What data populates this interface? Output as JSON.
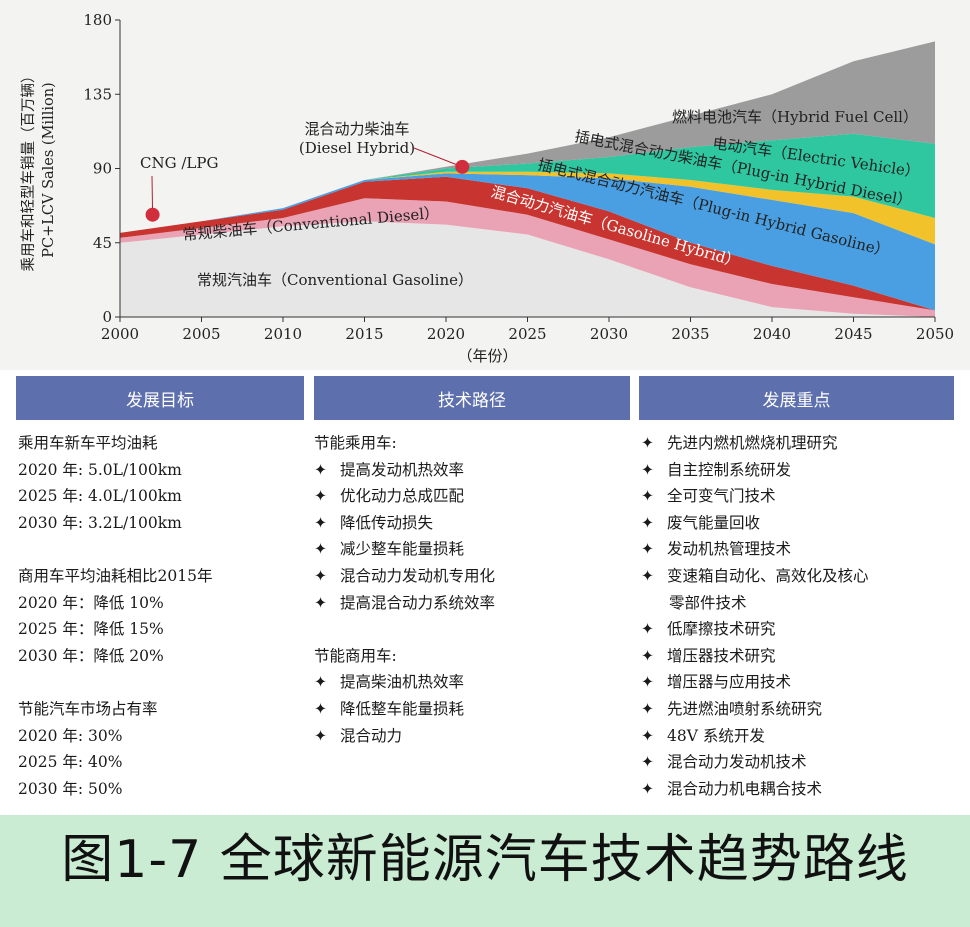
{
  "chart_data": {
    "type": "area",
    "ylabel_cn": "乘用车和轻型车销量（百万辆）",
    "ylabel_en": "PC+LCV Sales (Million)",
    "xlabel": "（年份）",
    "xlim": [
      2000,
      2050
    ],
    "ylim": [
      0,
      180
    ],
    "x_ticks": [
      "2000",
      "2005",
      "2010",
      "2015",
      "2020",
      "2025",
      "2030",
      "2035",
      "2040",
      "2045",
      "2050"
    ],
    "y_ticks": [
      "0",
      "45",
      "90",
      "135",
      "180"
    ],
    "x": [
      2000,
      2005,
      2010,
      2015,
      2020,
      2025,
      2030,
      2035,
      2040,
      2045,
      2050
    ],
    "series": [
      {
        "name": "常规汽油车（Conventional Gasoline）",
        "color": "#e6e6e6",
        "values": [
          45,
          50,
          55,
          58,
          56,
          50,
          35,
          18,
          6,
          2,
          0
        ]
      },
      {
        "name": "混合动力汽油车（Gasoline Hybrid）",
        "color": "#e9a3b5",
        "values": [
          3,
          4,
          5,
          14,
          14,
          12,
          12,
          14,
          14,
          10,
          4
        ]
      },
      {
        "name": "常规柴油车（Conventional Diesel）",
        "color": "#c8342f",
        "values": [
          3,
          4,
          5,
          10,
          15,
          16,
          17,
          13,
          11,
          7,
          0
        ]
      },
      {
        "name": "插电式混合动力汽油车（Plug-in Hybrid Gasoline）",
        "color": "#4a9fe2",
        "values": [
          0,
          0,
          1,
          1,
          2,
          8,
          20,
          34,
          40,
          44,
          40
        ]
      },
      {
        "name": "插电式混合动力柴油车（Plug-in Hybrid Diesel）",
        "color": "#f2c22a",
        "values": [
          0,
          0,
          0,
          0,
          1,
          2,
          3,
          4,
          6,
          10,
          16
        ]
      },
      {
        "name": "电动汽车（Electric Vehicle）",
        "color": "#2fc7a0",
        "values": [
          0,
          0,
          0,
          0,
          2,
          5,
          10,
          20,
          30,
          38,
          45
        ]
      },
      {
        "name": "燃料电池汽车（Hybrid Fuel Cell）",
        "color": "#9c9c9c",
        "values": [
          0,
          0,
          0,
          0,
          1,
          6,
          12,
          19,
          28,
          44,
          62
        ]
      }
    ],
    "labels": {
      "gasoline": "常规汽油车（Conventional Gasoline）",
      "diesel": "常规柴油车（Conventional Diesel）",
      "gas_hybrid": "混合动力汽油车（Gasoline Hybrid）",
      "phev_gas": "插电式混合动力汽油车（Plug-in Hybrid Gasoline）",
      "phev_diesel": "插电式混合动力柴油车（Plug-in Hybrid Diesel）",
      "ev": "电动汽车（Electric Vehicle）",
      "fuel_cell": "燃料电池汽车（Hybrid Fuel Cell）",
      "diesel_hybrid_cn": "混合动力柴油车",
      "diesel_hybrid_en": "(Diesel Hybrid)",
      "cng": "CNG /LPG"
    },
    "markers": [
      {
        "label": "CNG /LPG",
        "x": 2002,
        "y": 62,
        "color": "#d12d3c"
      },
      {
        "label": "混合动力柴油车",
        "x": 2021,
        "y": 91,
        "color": "#d12d3c"
      }
    ]
  },
  "panels": [
    {
      "header": "发展目标",
      "lines": [
        "乘用车新车平均油耗",
        "2020 年:   5.0L/100km",
        "2025 年:   4.0L/100km",
        "2030 年:   3.2L/100km",
        "",
        "商用车平均油耗相比2015年",
        "2020 年：降低   10%",
        "2025 年：降低   15%",
        "2030 年：降低   20%",
        "",
        "节能汽车市场占有率",
        "2020 年:   30%",
        "2025 年:   40%",
        "2030 年:   50%"
      ]
    },
    {
      "header": "技术路径",
      "lines": [
        "节能乘用车:",
        "✦提高发动机热效率",
        "✦优化动力总成匹配",
        "✦降低传动损失",
        "✦减少整车能量损耗",
        "✦混合动力发动机专用化",
        "✦提高混合动力系统效率",
        "",
        "节能商用车:",
        "✦提高柴油机热效率",
        "✦降低整车能量损耗",
        "✦混合动力"
      ]
    },
    {
      "header": "发展重点",
      "lines": [
        "✦先进内燃机燃烧机理研究",
        "✦自主控制系统研发",
        "✦全可变气门技术",
        "✦废气能量回收",
        "✦发动机热管理技术",
        "✦变速箱自动化、高效化及核心",
        ">零部件技术",
        "✦低摩擦技术研究",
        "✦增压器技术研究",
        "✦增压器与应用技术",
        "✦先进燃油喷射系统研究",
        "✦48V 系统开发",
        "✦混合动力发动机技术",
        "✦混合动力机电耦合技术"
      ]
    }
  ],
  "caption": "图1-7 全球新能源汽车技术趋势路线"
}
